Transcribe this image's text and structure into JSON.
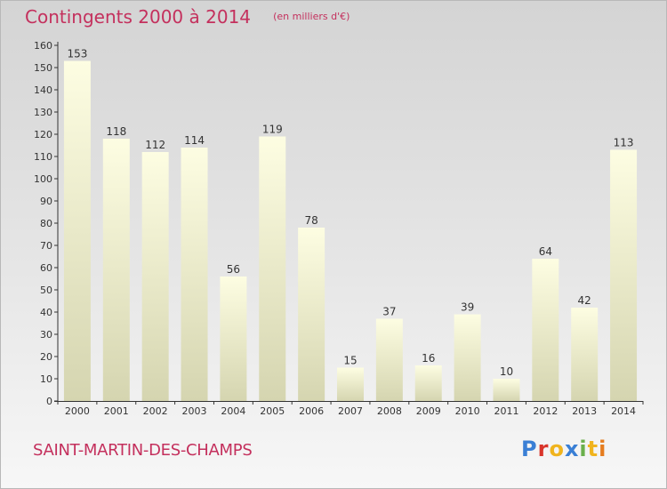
{
  "header": {
    "title": "Contingents 2000 à 2014",
    "subtitle": "(en milliers d'€)"
  },
  "footer": {
    "commune": "SAINT-MARTIN-DES-CHAMPS",
    "logo_text": "Proxiti"
  },
  "colors": {
    "title": "#c4305d",
    "bar_top": "#fdfde2",
    "bar_bottom": "#d5d5b0",
    "logo_letters": [
      "#3a7fd5",
      "#d9352b",
      "#f0b41e",
      "#3a7fd5",
      "#6ab04c",
      "#f0b41e",
      "#e57c1e"
    ]
  },
  "chart_data": {
    "type": "bar",
    "categories": [
      "2000",
      "2001",
      "2002",
      "2003",
      "2004",
      "2005",
      "2006",
      "2007",
      "2008",
      "2009",
      "2010",
      "2011",
      "2012",
      "2013",
      "2014"
    ],
    "values": [
      153,
      118,
      112,
      114,
      56,
      119,
      78,
      15,
      37,
      16,
      39,
      10,
      64,
      42,
      113
    ],
    "ylim": [
      0,
      160
    ],
    "yticks": [
      0,
      10,
      20,
      30,
      40,
      50,
      60,
      70,
      80,
      90,
      100,
      110,
      120,
      130,
      140,
      150,
      160
    ],
    "grid": false,
    "data_labels": true
  }
}
